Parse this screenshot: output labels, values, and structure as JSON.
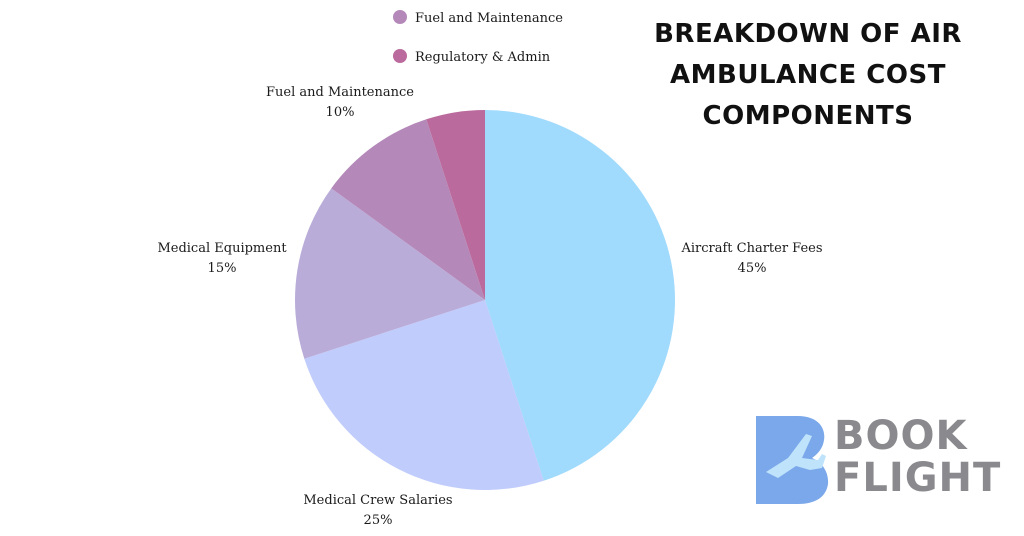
{
  "title": "BREAKDOWN OF AIR\nAMBULANCE COST\nCOMPONENTS",
  "chart_data": {
    "type": "pie",
    "title": "BREAKDOWN OF AIR AMBULANCE COST COMPONENTS",
    "slices": [
      {
        "name": "Aircraft Charter Fees",
        "value": 45,
        "label": "45%",
        "color": "#a0dafc"
      },
      {
        "name": "Medical Crew Salaries",
        "value": 25,
        "label": "25%",
        "color": "#c0ccfb"
      },
      {
        "name": "Medical Equipment",
        "value": 15,
        "label": "15%",
        "color": "#baacd9"
      },
      {
        "name": "Fuel and Maintenance",
        "value": 10,
        "label": "10%",
        "color": "#b489b9"
      },
      {
        "name": "Regulatory & Admin",
        "value": 5,
        "label": "",
        "color": "#ba6a9c"
      }
    ],
    "legend": {
      "placement": "top-center",
      "entries": [
        {
          "name": "Fuel and Maintenance",
          "color": "#b489b9"
        },
        {
          "name": "Regulatory & Admin",
          "color": "#ba6a9c"
        }
      ]
    }
  },
  "logo": {
    "line1": "BOOK",
    "line2": "FLIGHT",
    "colors": {
      "mark_blue": "#7aa8ea",
      "mark_light": "#bfe3fb",
      "text": "#8a8a8e"
    }
  }
}
